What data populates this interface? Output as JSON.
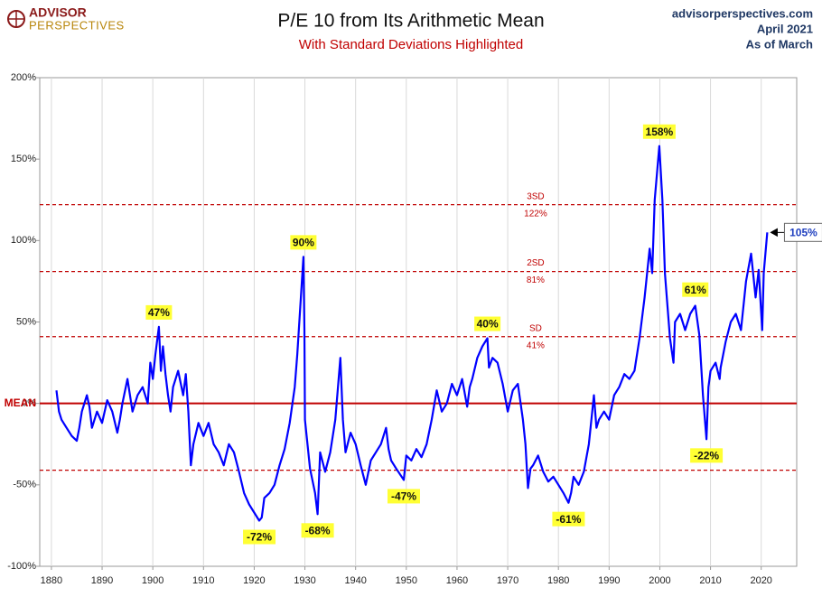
{
  "brand": {
    "line1": "ADVISOR",
    "line2": "PERSPECTIVES"
  },
  "source": {
    "site": "advisorperspectives.com",
    "date": "April 2021",
    "as_of": "As of March"
  },
  "chart_data": {
    "type": "line",
    "title": "P/E 10 from Its Arithmetic Mean",
    "subtitle": "With Standard Deviations Highlighted",
    "color": "#0000ff",
    "x": [
      1881,
      1881.5,
      1882,
      1883,
      1884,
      1885,
      1885.5,
      1886,
      1887,
      1887.5,
      1888,
      1889,
      1890,
      1891,
      1892,
      1893,
      1893.5,
      1894,
      1895,
      1896,
      1897,
      1898,
      1899,
      1899.5,
      1900,
      1900.5,
      1901.2,
      1901.6,
      1902,
      1902.5,
      1903,
      1903.5,
      1904,
      1905,
      1906,
      1906.5,
      1907,
      1907.5,
      1908,
      1909,
      1910,
      1911,
      1912,
      1913,
      1914,
      1915,
      1916,
      1917,
      1918,
      1919,
      1920,
      1921,
      1921.5,
      1922,
      1923,
      1924,
      1925,
      1926,
      1927,
      1928,
      1928.5,
      1929.7,
      1929.9,
      1930,
      1931,
      1932,
      1932.5,
      1933,
      1934,
      1935,
      1936,
      1937,
      1937.5,
      1938,
      1939,
      1940,
      1941,
      1942,
      1943,
      1944,
      1945,
      1946,
      1946.5,
      1947,
      1948,
      1949.5,
      1950,
      1951,
      1952,
      1953,
      1954,
      1955,
      1956,
      1957,
      1958,
      1959,
      1960,
      1961,
      1962,
      1962.5,
      1963,
      1964,
      1965,
      1966,
      1966.3,
      1967,
      1968,
      1969,
      1970,
      1971,
      1972,
      1973,
      1973.5,
      1974,
      1974.5,
      1975,
      1976,
      1977,
      1978,
      1979,
      1980,
      1981,
      1982,
      1982.5,
      1983,
      1984,
      1985,
      1986,
      1987,
      1987.5,
      1988,
      1989,
      1990,
      1991,
      1992,
      1993,
      1994,
      1995,
      1996,
      1997,
      1998,
      1998.5,
      1999,
      1999.9,
      2000.5,
      2001,
      2001.5,
      2002,
      2002.7,
      2003,
      2004,
      2005,
      2006,
      2007,
      2007.8,
      2008.5,
      2009.2,
      2009.6,
      2010,
      2011,
      2011.8,
      2012,
      2013,
      2014,
      2015,
      2016,
      2017,
      2018,
      2018.9,
      2019.5,
      2020.2,
      2020.5,
      2021.2
    ],
    "values": [
      8,
      -5,
      -10,
      -15,
      -20,
      -23,
      -15,
      -5,
      5,
      -2,
      -15,
      -5,
      -12,
      2,
      -5,
      -18,
      -10,
      0,
      15,
      -5,
      5,
      10,
      0,
      25,
      15,
      30,
      47,
      20,
      35,
      18,
      5,
      -5,
      10,
      20,
      5,
      18,
      -5,
      -38,
      -25,
      -12,
      -20,
      -12,
      -25,
      -30,
      -38,
      -25,
      -30,
      -42,
      -55,
      -62,
      -67,
      -72,
      -70,
      -58,
      -55,
      -50,
      -38,
      -28,
      -12,
      10,
      30,
      90,
      45,
      -10,
      -40,
      -55,
      -68,
      -30,
      -42,
      -30,
      -10,
      28,
      -10,
      -30,
      -18,
      -25,
      -38,
      -50,
      -35,
      -30,
      -25,
      -15,
      -28,
      -35,
      -40,
      -47,
      -32,
      -35,
      -28,
      -33,
      -25,
      -10,
      8,
      -5,
      0,
      12,
      5,
      15,
      -2,
      10,
      15,
      28,
      35,
      40,
      22,
      28,
      25,
      12,
      -5,
      8,
      12,
      -10,
      -25,
      -52,
      -40,
      -38,
      -32,
      -42,
      -48,
      -45,
      -50,
      -55,
      -61,
      -55,
      -45,
      -50,
      -42,
      -25,
      5,
      -15,
      -10,
      -5,
      -10,
      5,
      10,
      18,
      15,
      20,
      40,
      65,
      95,
      80,
      125,
      158,
      125,
      80,
      60,
      40,
      25,
      50,
      55,
      45,
      55,
      60,
      42,
      5,
      -22,
      10,
      20,
      25,
      15,
      22,
      38,
      50,
      55,
      45,
      75,
      92,
      65,
      82,
      45,
      80,
      105
    ],
    "last_value_label": "105%",
    "xlim": [
      1877.7,
      2027
    ],
    "ylim": [
      -100,
      200
    ],
    "xticks": [
      1880,
      1890,
      1900,
      1910,
      1920,
      1930,
      1940,
      1950,
      1960,
      1970,
      1980,
      1990,
      2000,
      2010,
      2020
    ],
    "yticks": [
      {
        "value": -100,
        "label": "-100%"
      },
      {
        "value": -50,
        "label": "-50%"
      },
      {
        "value": 0,
        "label": "0%"
      },
      {
        "value": 50,
        "label": "50%"
      },
      {
        "value": 100,
        "label": "100%"
      },
      {
        "value": 150,
        "label": "150%"
      },
      {
        "value": 200,
        "label": "200%"
      }
    ],
    "grid": true,
    "mean_line": {
      "name": "MEAN",
      "value": 0
    },
    "reference_lines": [
      {
        "name": "3SD",
        "value": 122,
        "label": "122%"
      },
      {
        "name": "2SD",
        "value": 81,
        "label": "81%"
      },
      {
        "name": "SD",
        "value": 41,
        "label": "41%"
      },
      {
        "value": -41
      }
    ],
    "annotations": [
      {
        "label": "47%",
        "x": 1901.2,
        "value": 47
      },
      {
        "label": "90%",
        "x": 1929.7,
        "value": 90
      },
      {
        "label": "-72%",
        "x": 1921,
        "value": -72
      },
      {
        "label": "-68%",
        "x": 1932.5,
        "value": -68
      },
      {
        "label": "-47%",
        "x": 1949.5,
        "value": -47
      },
      {
        "label": "40%",
        "x": 1966,
        "value": 40
      },
      {
        "label": "-61%",
        "x": 1982,
        "value": -61
      },
      {
        "label": "158%",
        "x": 1999.9,
        "value": 158
      },
      {
        "label": "61%",
        "x": 2007,
        "value": 61
      },
      {
        "label": "-22%",
        "x": 2009.2,
        "value": -22
      }
    ]
  }
}
